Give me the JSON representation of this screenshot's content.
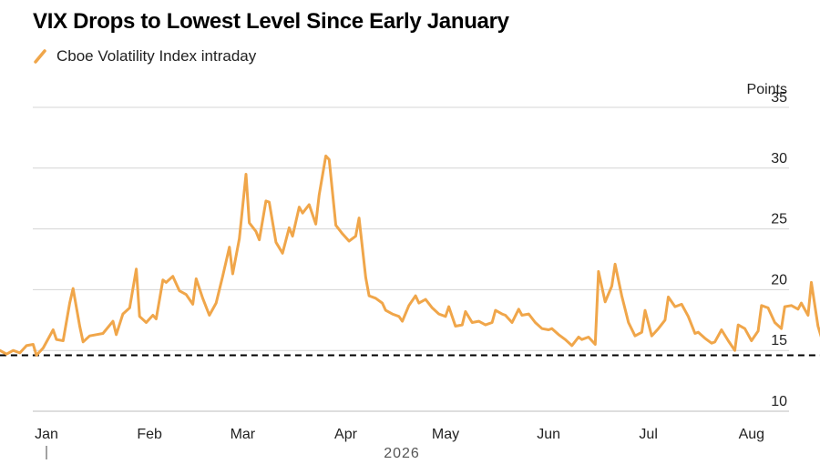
{
  "chart_data": {
    "type": "line",
    "title": "VIX Drops to Lowest Level Since Early January",
    "ylabel": "Points",
    "ylim": [
      10,
      35
    ],
    "yticks": [
      10,
      15,
      20,
      25,
      30,
      35
    ],
    "grid": true,
    "legend_position": "top-left",
    "x_tick_labels": [
      "Jan",
      "Feb",
      "Mar",
      "Apr",
      "May",
      "Jun",
      "Jul",
      "Aug"
    ],
    "year_label": "2026",
    "reference_line": {
      "value": 14.6,
      "style": "dashed"
    },
    "series": [
      {
        "name": "Cboe Volatility Index intraday",
        "color": "#f0a64a",
        "points": [
          [
            "2026-01-01",
            15.0
          ],
          [
            "2026-01-03",
            14.7
          ],
          [
            "2026-01-05",
            15.0
          ],
          [
            "2026-01-07",
            14.8
          ],
          [
            "2026-01-09",
            15.4
          ],
          [
            "2026-01-11",
            15.5
          ],
          [
            "2026-01-12",
            14.6
          ],
          [
            "2026-01-14",
            15.2
          ],
          [
            "2026-01-17",
            16.7
          ],
          [
            "2026-01-18",
            15.9
          ],
          [
            "2026-01-20",
            15.8
          ],
          [
            "2026-01-22",
            18.9
          ],
          [
            "2026-01-23",
            20.1
          ],
          [
            "2026-01-25",
            17.0
          ],
          [
            "2026-01-26",
            15.7
          ],
          [
            "2026-01-28",
            16.2
          ],
          [
            "2026-01-30",
            16.3
          ],
          [
            "2026-02-01",
            16.4
          ],
          [
            "2026-02-04",
            17.4
          ],
          [
            "2026-02-05",
            16.3
          ],
          [
            "2026-02-07",
            18.0
          ],
          [
            "2026-02-09",
            18.5
          ],
          [
            "2026-02-11",
            21.7
          ],
          [
            "2026-02-12",
            17.8
          ],
          [
            "2026-02-14",
            17.3
          ],
          [
            "2026-02-16",
            17.9
          ],
          [
            "2026-02-17",
            17.6
          ],
          [
            "2026-02-19",
            20.8
          ],
          [
            "2026-02-20",
            20.6
          ],
          [
            "2026-02-22",
            21.1
          ],
          [
            "2026-02-24",
            19.9
          ],
          [
            "2026-02-26",
            19.6
          ],
          [
            "2026-02-28",
            18.8
          ],
          [
            "2026-03-01",
            20.9
          ],
          [
            "2026-03-03",
            19.3
          ],
          [
            "2026-03-05",
            17.9
          ],
          [
            "2026-03-07",
            18.9
          ],
          [
            "2026-03-09",
            21.1
          ],
          [
            "2026-03-11",
            23.5
          ],
          [
            "2026-03-12",
            21.3
          ],
          [
            "2026-03-14",
            24.2
          ],
          [
            "2026-03-16",
            29.5
          ],
          [
            "2026-03-17",
            25.5
          ],
          [
            "2026-03-19",
            24.8
          ],
          [
            "2026-03-20",
            24.1
          ],
          [
            "2026-03-22",
            27.3
          ],
          [
            "2026-03-23",
            27.2
          ],
          [
            "2026-03-25",
            23.9
          ],
          [
            "2026-03-27",
            23.0
          ],
          [
            "2026-03-29",
            25.1
          ],
          [
            "2026-03-30",
            24.4
          ],
          [
            "2026-04-01",
            26.8
          ],
          [
            "2026-04-02",
            26.3
          ],
          [
            "2026-04-04",
            27.0
          ],
          [
            "2026-04-06",
            25.4
          ],
          [
            "2026-04-07",
            27.8
          ],
          [
            "2026-04-09",
            31.0
          ],
          [
            "2026-04-10",
            30.7
          ],
          [
            "2026-04-12",
            25.3
          ],
          [
            "2026-04-14",
            24.6
          ],
          [
            "2026-04-16",
            24.0
          ],
          [
            "2026-04-18",
            24.4
          ],
          [
            "2026-04-19",
            25.9
          ],
          [
            "2026-04-21",
            21.0
          ],
          [
            "2026-04-22",
            19.5
          ],
          [
            "2026-04-24",
            19.3
          ],
          [
            "2026-04-26",
            18.9
          ],
          [
            "2026-04-27",
            18.3
          ],
          [
            "2026-04-29",
            18.0
          ],
          [
            "2026-05-01",
            17.8
          ],
          [
            "2026-05-02",
            17.4
          ],
          [
            "2026-05-04",
            18.7
          ],
          [
            "2026-05-06",
            19.5
          ],
          [
            "2026-05-07",
            18.9
          ],
          [
            "2026-05-09",
            19.2
          ],
          [
            "2026-05-11",
            18.5
          ],
          [
            "2026-05-13",
            18.0
          ],
          [
            "2026-05-15",
            17.8
          ],
          [
            "2026-05-16",
            18.6
          ],
          [
            "2026-05-18",
            17.0
          ],
          [
            "2026-05-20",
            17.1
          ],
          [
            "2026-05-21",
            18.2
          ],
          [
            "2026-05-23",
            17.3
          ],
          [
            "2026-05-25",
            17.4
          ],
          [
            "2026-05-27",
            17.1
          ],
          [
            "2026-05-29",
            17.3
          ],
          [
            "2026-05-30",
            18.3
          ],
          [
            "2026-06-01",
            18.0
          ],
          [
            "2026-06-02",
            17.9
          ],
          [
            "2026-06-04",
            17.3
          ],
          [
            "2026-06-06",
            18.4
          ],
          [
            "2026-06-07",
            17.9
          ],
          [
            "2026-06-09",
            18.0
          ],
          [
            "2026-06-11",
            17.3
          ],
          [
            "2026-06-13",
            16.8
          ],
          [
            "2026-06-15",
            16.7
          ],
          [
            "2026-06-16",
            16.8
          ],
          [
            "2026-06-18",
            16.3
          ],
          [
            "2026-06-20",
            15.9
          ],
          [
            "2026-06-22",
            15.4
          ],
          [
            "2026-06-24",
            16.1
          ],
          [
            "2026-06-25",
            15.9
          ],
          [
            "2026-06-27",
            16.1
          ],
          [
            "2026-06-29",
            15.5
          ],
          [
            "2026-06-30",
            21.5
          ],
          [
            "2026-07-02",
            19.0
          ],
          [
            "2026-07-04",
            20.3
          ],
          [
            "2026-07-05",
            22.1
          ],
          [
            "2026-07-07",
            19.5
          ],
          [
            "2026-07-09",
            17.3
          ],
          [
            "2026-07-11",
            16.2
          ],
          [
            "2026-07-13",
            16.5
          ],
          [
            "2026-07-14",
            18.3
          ],
          [
            "2026-07-16",
            16.2
          ],
          [
            "2026-07-18",
            16.8
          ],
          [
            "2026-07-20",
            17.5
          ],
          [
            "2026-07-21",
            19.4
          ],
          [
            "2026-07-23",
            18.6
          ],
          [
            "2026-07-25",
            18.8
          ],
          [
            "2026-07-27",
            17.8
          ],
          [
            "2026-07-29",
            16.4
          ],
          [
            "2026-07-30",
            16.5
          ],
          [
            "2026-08-01",
            16.0
          ],
          [
            "2026-08-03",
            15.6
          ],
          [
            "2026-08-04",
            15.7
          ],
          [
            "2026-08-06",
            16.7
          ],
          [
            "2026-08-08",
            15.8
          ],
          [
            "2026-08-10",
            15.0
          ],
          [
            "2026-08-11",
            17.1
          ],
          [
            "2026-08-13",
            16.8
          ],
          [
            "2026-08-15",
            15.8
          ],
          [
            "2026-08-17",
            16.6
          ],
          [
            "2026-08-18",
            18.7
          ],
          [
            "2026-08-20",
            18.5
          ],
          [
            "2026-08-22",
            17.3
          ],
          [
            "2026-08-24",
            16.8
          ],
          [
            "2026-08-25",
            18.6
          ],
          [
            "2026-08-27",
            18.7
          ],
          [
            "2026-08-29",
            18.4
          ],
          [
            "2026-08-30",
            18.9
          ],
          [
            "2026-09-01",
            17.9
          ],
          [
            "2026-09-02",
            20.6
          ],
          [
            "2026-09-04",
            17.0
          ],
          [
            "2026-09-05",
            16.1
          ],
          [
            "2026-09-07",
            16.0
          ],
          [
            "2026-09-09",
            16.5
          ],
          [
            "2026-09-11",
            15.7
          ],
          [
            "2026-09-12",
            15.1
          ],
          [
            "2026-09-14",
            14.7
          ],
          [
            "2026-09-16",
            15.5
          ],
          [
            "2026-09-17",
            15.3
          ],
          [
            "2026-09-19",
            14.6
          ]
        ]
      }
    ]
  }
}
